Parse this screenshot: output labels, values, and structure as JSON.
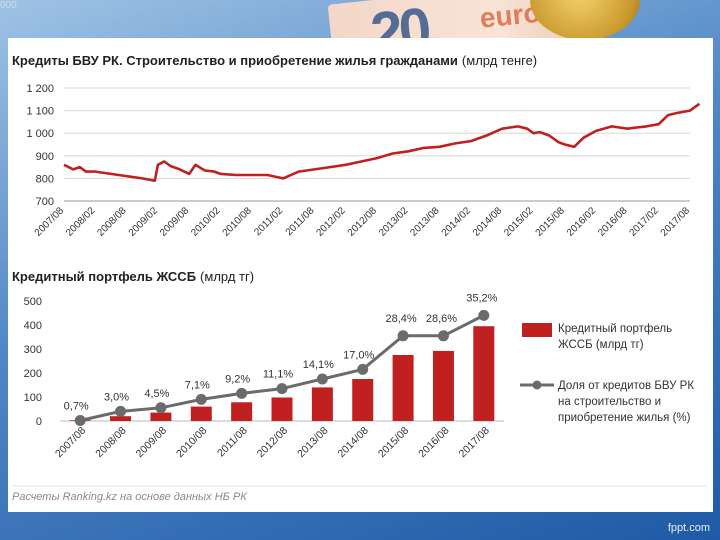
{
  "decoration": {
    "corner_text": "000",
    "banknote_text": "20",
    "banknote_word": "euro"
  },
  "footer": "fppt.com",
  "source": "Расчеты Ranking.kz на основе данных НБ РК",
  "chart_data": [
    {
      "type": "line",
      "title": "Кредиты БВУ РК. Строительство и приобретение жилья гражданами",
      "title_unit": "(млрд тенге)",
      "ylim": [
        700,
        1200
      ],
      "y_ticks": [
        "1 200",
        "1 100",
        "1 000",
        "900",
        "800",
        "700"
      ],
      "y_tick_values": [
        1200,
        1100,
        1000,
        900,
        800,
        700
      ],
      "grid": "horizontal",
      "color": "#c0201f",
      "x_labels": [
        "2007/08",
        "2008/02",
        "2008/08",
        "2009/02",
        "2009/08",
        "2010/02",
        "2010/08",
        "2011/02",
        "2011/08",
        "2012/02",
        "2012/08",
        "2013/02",
        "2013/08",
        "2014/02",
        "2014/08",
        "2015/02",
        "2015/08",
        "2016/02",
        "2016/08",
        "2017/02",
        "2017/08"
      ],
      "series": [
        {
          "x": [
            0,
            0.3,
            0.5,
            0.7,
            1,
            1.5,
            2,
            2.5,
            2.9,
            3,
            3.2,
            3.4,
            3.7,
            4,
            4.2,
            4.5,
            4.8,
            5,
            5.5,
            6,
            6.5,
            7,
            7.5,
            8,
            8.5,
            9,
            9.5,
            10,
            10.5,
            11,
            11.5,
            12,
            12.5,
            13,
            13.5,
            14,
            14.5,
            14.8,
            15,
            15.2,
            15.5,
            15.8,
            16,
            16.3,
            16.6,
            17,
            17.5,
            18,
            18.3,
            18.6,
            19,
            19.3,
            19.6,
            20,
            20.3
          ],
          "y": [
            860,
            840,
            850,
            830,
            830,
            820,
            810,
            800,
            790,
            860,
            875,
            855,
            840,
            820,
            860,
            835,
            830,
            820,
            815,
            815,
            815,
            800,
            830,
            840,
            850,
            860,
            875,
            890,
            910,
            920,
            935,
            940,
            955,
            965,
            990,
            1020,
            1030,
            1020,
            1000,
            1005,
            990,
            960,
            950,
            940,
            980,
            1010,
            1030,
            1020,
            1025,
            1030,
            1040,
            1080,
            1090,
            1100,
            1130
          ]
        }
      ]
    },
    {
      "type": "bar",
      "title": "Кредитный портфель ЖССБ",
      "title_unit": "(млрд тг)",
      "ylim": [
        0,
        500
      ],
      "y_ticks": [
        "500",
        "400",
        "300",
        "200",
        "100",
        "0"
      ],
      "y_tick_values": [
        500,
        400,
        300,
        200,
        100,
        0
      ],
      "categories": [
        "2007/08",
        "2008/08",
        "2009/08",
        "2010/08",
        "2011/08",
        "2012/08",
        "2013/08",
        "2014/08",
        "2015/08",
        "2016/08",
        "2017/08"
      ],
      "bar_color": "#c0201f",
      "line_color": "#6b6b6b",
      "series": [
        {
          "name": "Кредитный портфель ЖССБ (млрд тг)",
          "kind": "bar",
          "values": [
            3,
            20,
            35,
            60,
            78,
            98,
            140,
            175,
            275,
            292,
            395
          ]
        },
        {
          "name": "Доля от кредитов БВУ РК на строительство и приобретение жилья (%)",
          "kind": "line",
          "values": [
            0.7,
            3.0,
            4.5,
            7.1,
            9.2,
            11.1,
            14.1,
            17.0,
            28.4,
            28.6,
            35.2
          ],
          "labels": [
            "0,7%",
            "3,0%",
            "4,5%",
            "7,1%",
            "9,2%",
            "11,1%",
            "14,1%",
            "17,0%",
            "28,4%",
            "28,6%",
            "35,2%"
          ],
          "plot_values": [
            2,
            40,
            55,
            90,
            115,
            135,
            175,
            215,
            355,
            355,
            440
          ]
        }
      ],
      "legend": [
        {
          "kind": "bar",
          "lines": [
            "Кредитный портфель",
            "ЖССБ (млрд тг)"
          ]
        },
        {
          "kind": "line",
          "lines": [
            "Доля от кредитов БВУ РК",
            "на строительство и",
            "приобретение жилья (%)"
          ]
        }
      ],
      "legend_position": "right"
    }
  ]
}
